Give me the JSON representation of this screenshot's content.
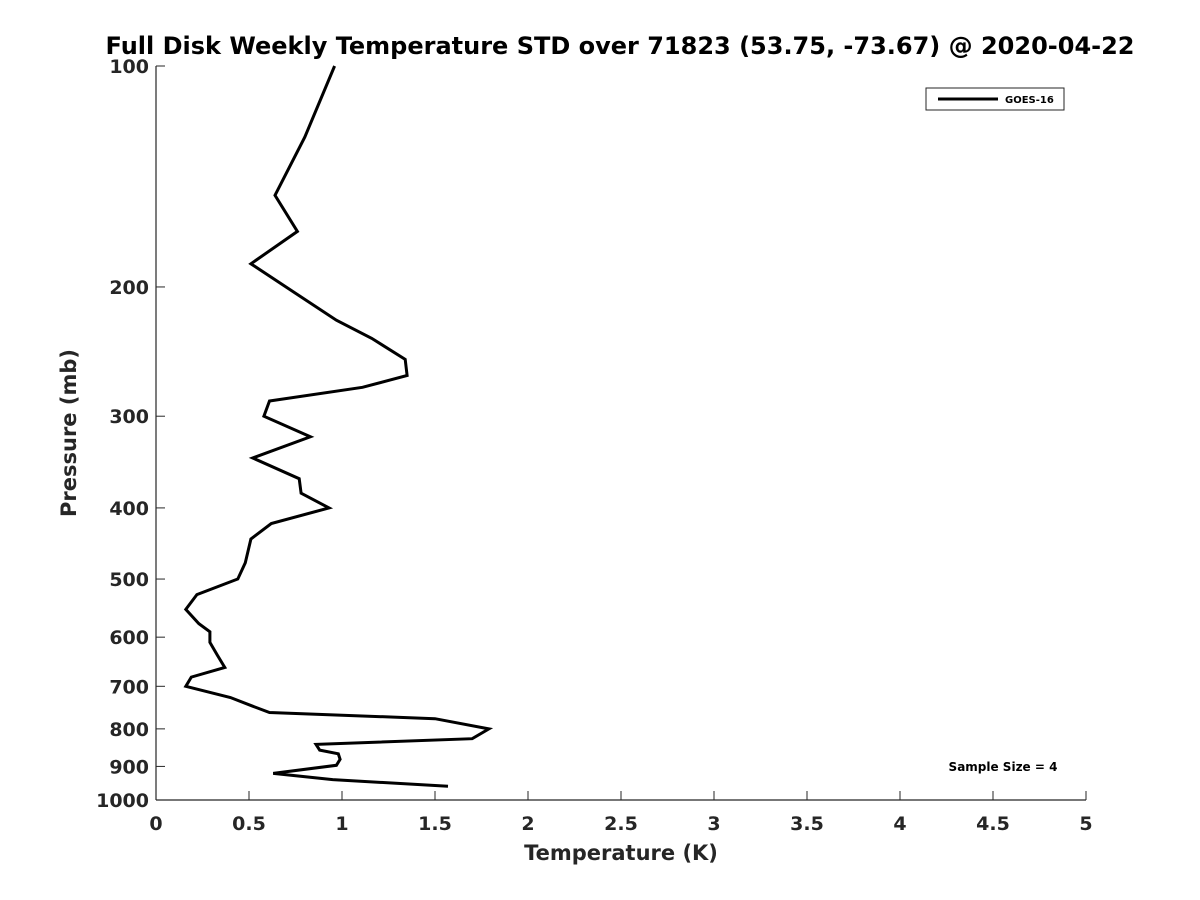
{
  "chart_data": {
    "type": "line",
    "title": "Full Disk Weekly Temperature STD over 71823 (53.75, -73.67) @ 2020-04-22",
    "xlabel": "Temperature (K)",
    "ylabel": "Pressure (mb)",
    "xlim": [
      0,
      5
    ],
    "ylim": [
      100,
      1000
    ],
    "y_scale": "log",
    "y_reversed": true,
    "x_ticks": [
      "0",
      "0.5",
      "1",
      "1.5",
      "2",
      "2.5",
      "3",
      "3.5",
      "4",
      "4.5",
      "5"
    ],
    "y_ticks": [
      "100",
      "200",
      "300",
      "400",
      "500",
      "600",
      "700",
      "800",
      "900",
      "1000"
    ],
    "grid": false,
    "legend_position": "top-right",
    "series": [
      {
        "name": "GOES-16",
        "color": "#000000",
        "points": [
          [
            0.96,
            100
          ],
          [
            0.8,
            125
          ],
          [
            0.64,
            150
          ],
          [
            0.76,
            168
          ],
          [
            0.51,
            186
          ],
          [
            0.75,
            204
          ],
          [
            0.97,
            222
          ],
          [
            1.16,
            235
          ],
          [
            1.34,
            251
          ],
          [
            1.35,
            264
          ],
          [
            1.11,
            274
          ],
          [
            0.61,
            286
          ],
          [
            0.58,
            300
          ],
          [
            0.83,
            320
          ],
          [
            0.52,
            342
          ],
          [
            0.77,
            365
          ],
          [
            0.78,
            382
          ],
          [
            0.93,
            400
          ],
          [
            0.62,
            420
          ],
          [
            0.51,
            441
          ],
          [
            0.48,
            475
          ],
          [
            0.44,
            500
          ],
          [
            0.22,
            525
          ],
          [
            0.16,
            550
          ],
          [
            0.23,
            575
          ],
          [
            0.29,
            590
          ],
          [
            0.29,
            610
          ],
          [
            0.33,
            635
          ],
          [
            0.37,
            660
          ],
          [
            0.19,
            680
          ],
          [
            0.16,
            700
          ],
          [
            0.4,
            725
          ],
          [
            0.52,
            745
          ],
          [
            0.61,
            760
          ],
          [
            1.5,
            775
          ],
          [
            1.79,
            800
          ],
          [
            1.7,
            825
          ],
          [
            0.86,
            840
          ],
          [
            0.88,
            855
          ],
          [
            0.98,
            865
          ],
          [
            0.99,
            880
          ],
          [
            0.97,
            897
          ],
          [
            0.63,
            920
          ],
          [
            0.95,
            938
          ],
          [
            1.57,
            958
          ]
        ]
      }
    ],
    "annotation": "Sample Size = 4"
  }
}
